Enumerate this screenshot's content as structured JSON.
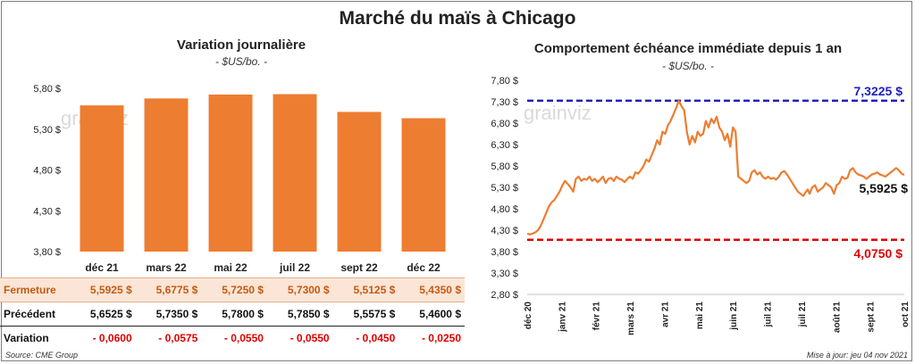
{
  "title": "Marché du maïs à Chicago",
  "watermark": "grainviz",
  "left": {
    "subtitle": "Variation journalière",
    "unit": "- $US/bo. -",
    "chart_data": {
      "type": "bar",
      "categories": [
        "déc 21",
        "mars 22",
        "mai 22",
        "juil 22",
        "sept 22",
        "déc 22"
      ],
      "values": [
        5.5925,
        5.6775,
        5.725,
        5.73,
        5.5125,
        5.435
      ],
      "ylim": [
        3.8,
        5.9
      ],
      "yticks": [
        "3,80 $",
        "4,30 $",
        "4,80 $",
        "5,30 $",
        "5,80 $"
      ],
      "ytick_values": [
        3.8,
        4.3,
        4.8,
        5.3,
        5.8
      ],
      "bar_color": "#ed7d31",
      "grid": false
    },
    "table": {
      "rows": [
        {
          "label": "Fermeture",
          "values": [
            "5,5925  $",
            "5,6775  $",
            "5,7250  $",
            "5,7300  $",
            "5,5125  $",
            "5,4350  $"
          ]
        },
        {
          "label": "Précédent",
          "values": [
            "5,6525  $",
            "5,7350  $",
            "5,7800  $",
            "5,7850  $",
            "5,5575  $",
            "5,4600  $"
          ]
        },
        {
          "label": "Variation",
          "values": [
            "- 0,0600",
            "- 0,0575",
            "- 0,0550",
            "- 0,0550",
            "- 0,0450",
            "- 0,0250"
          ]
        }
      ]
    },
    "source": "Source: CME Group"
  },
  "right": {
    "subtitle": "Comportement  échéance immédiate depuis 1 an",
    "unit": "- $US/bo. -",
    "chart_data": {
      "type": "line",
      "ylim": [
        2.8,
        7.8
      ],
      "yticks": [
        "2,80 $",
        "3,30 $",
        "3,80 $",
        "4,30 $",
        "4,80 $",
        "5,30 $",
        "5,80 $",
        "6,30 $",
        "6,80 $",
        "7,30 $",
        "7,80 $"
      ],
      "ytick_values": [
        2.8,
        3.3,
        3.8,
        4.3,
        4.8,
        5.3,
        5.8,
        6.3,
        6.8,
        7.3,
        7.8
      ],
      "xticks": [
        "déc 20",
        "janv 21",
        "févr 21",
        "mars 21",
        "avr 21",
        "mai 21",
        "juin 21",
        "juil 21",
        "juil 21",
        "août 21",
        "sept 21",
        "oct 21"
      ],
      "x": [
        0,
        3,
        6,
        9,
        12,
        15,
        18,
        21,
        24,
        27,
        30,
        33,
        36,
        39,
        42,
        45,
        48,
        51,
        54,
        57,
        60,
        63,
        66,
        69,
        72,
        75,
        78,
        81,
        84,
        87,
        90,
        93,
        96,
        99,
        102,
        105,
        108,
        111,
        114,
        117,
        120,
        123,
        126,
        129,
        132,
        135,
        138,
        141,
        144,
        147,
        150,
        153,
        156,
        159,
        162,
        165,
        168,
        171,
        174,
        177,
        180,
        183,
        186,
        189,
        192,
        195,
        198,
        201,
        204,
        207,
        210,
        213,
        216,
        219,
        222,
        225,
        228,
        231,
        234,
        237,
        240,
        243,
        246,
        249,
        252,
        255,
        258,
        261,
        264,
        267,
        270,
        273,
        276,
        279,
        282,
        285,
        288,
        291,
        294,
        297,
        300,
        303,
        306,
        309,
        311,
        313,
        316,
        319,
        322,
        325,
        328,
        331,
        334,
        337,
        340,
        343,
        346,
        349,
        352,
        355,
        358,
        361,
        364,
        367,
        370,
        373,
        376,
        379,
        382,
        385,
        388,
        391,
        394,
        397,
        400,
        403,
        406,
        409,
        412,
        415,
        418
      ],
      "series": [
        {
          "values": [
            4.22,
            4.2,
            4.22,
            4.25,
            4.3,
            4.4,
            4.55,
            4.7,
            4.85,
            4.95,
            5.0,
            5.1,
            5.2,
            5.35,
            5.45,
            5.38,
            5.3,
            5.2,
            5.5,
            5.55,
            5.45,
            5.5,
            5.48,
            5.55,
            5.45,
            5.5,
            5.42,
            5.48,
            5.55,
            5.4,
            5.5,
            5.52,
            5.45,
            5.55,
            5.5,
            5.48,
            5.42,
            5.5,
            5.55,
            5.5,
            5.65,
            5.62,
            5.7,
            5.8,
            5.95,
            5.9,
            6.05,
            6.2,
            6.4,
            6.3,
            6.6,
            6.55,
            6.75,
            6.85,
            7.0,
            7.15,
            7.32,
            7.2,
            7.1,
            6.6,
            6.3,
            6.5,
            6.35,
            6.6,
            6.5,
            6.55,
            6.85,
            6.7,
            6.9,
            6.8,
            6.95,
            6.7,
            6.6,
            6.4,
            6.55,
            6.25,
            6.7,
            6.6,
            5.55,
            5.5,
            5.45,
            5.4,
            5.45,
            5.65,
            5.7,
            5.6,
            5.65,
            5.55,
            5.5,
            5.55,
            5.5,
            5.52,
            5.48,
            5.55,
            5.65,
            5.68,
            5.6,
            5.5,
            5.4,
            5.3,
            5.2,
            5.15,
            5.1,
            5.2,
            5.25,
            5.15,
            5.3,
            5.35,
            5.2,
            5.25,
            5.3,
            5.4,
            5.35,
            5.3,
            5.15,
            5.35,
            5.4,
            5.55,
            5.5,
            5.52,
            5.7,
            5.75,
            5.65,
            5.6,
            5.58,
            5.55,
            5.5,
            5.55,
            5.6,
            5.62,
            5.65,
            5.6,
            5.58,
            5.55,
            5.6,
            5.65,
            5.7,
            5.75,
            5.7,
            5.62,
            5.59
          ],
          "color": "#ed7d31"
        }
      ],
      "ref_lines": [
        {
          "value": 7.3225,
          "label": "7,3225 $",
          "color": "#1f1fbf",
          "style": "dashed"
        },
        {
          "value": 4.075,
          "label": "4,0750 $",
          "color": "#e00000",
          "style": "dashed"
        }
      ],
      "last_label": "5,5925 $",
      "grid": false
    },
    "update": "Mise à jour: jeu 04 nov 2021"
  }
}
